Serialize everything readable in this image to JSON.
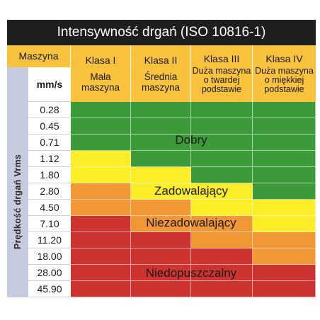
{
  "title": "Intensywność drgań (ISO 10816-1)",
  "header": {
    "machine_label": "Maszyna",
    "unit_label": "mm/s",
    "classes": [
      {
        "name": "Klasa I",
        "desc": "Mała maszyna"
      },
      {
        "name": "Klasa II",
        "desc": "Średnia maszyna"
      },
      {
        "name": "Klasa III",
        "desc_line1": "Duża maszyna",
        "desc_line2": "o twardej podstawie"
      },
      {
        "name": "Klasa IV",
        "desc_line1": "Duża maszyna",
        "desc_line2": "o miękkiej podstawie"
      }
    ]
  },
  "side_label": "Prędkość drgań Vrms",
  "rows": [
    "0.28",
    "0.45",
    "0.71",
    "1.12",
    "1.80",
    "2.80",
    "4.50",
    "7.10",
    "11.20",
    "18.00",
    "28.00",
    "45.90"
  ],
  "zones": {
    "good": "Dobry",
    "satisfactory": "Zadowalający",
    "unsatisfactory": "Niezadowalający",
    "unacceptable": "Niedopuszczalny"
  },
  "zone_matrix": [
    [
      "green",
      "green",
      "green",
      "green"
    ],
    [
      "green",
      "green",
      "green",
      "green"
    ],
    [
      "green",
      "green",
      "green",
      "green"
    ],
    [
      "yellow",
      "green",
      "green",
      "green"
    ],
    [
      "yellow",
      "yellow",
      "green",
      "green"
    ],
    [
      "orange",
      "yellow",
      "yellow",
      "green"
    ],
    [
      "orange",
      "orange",
      "yellow",
      "yellow"
    ],
    [
      "red",
      "orange",
      "orange",
      "yellow"
    ],
    [
      "red",
      "red",
      "orange",
      "orange"
    ],
    [
      "red",
      "red",
      "red",
      "orange"
    ],
    [
      "red",
      "red",
      "red",
      "red"
    ],
    [
      "red",
      "red",
      "red",
      "red"
    ]
  ],
  "colors": {
    "green": "#3c9a3a",
    "yellow": "#fbed28",
    "orange": "#f29735",
    "red": "#cc3331",
    "header": "#f8c23c",
    "title_bg": "#1e1e1e",
    "side": "#c6cbe0"
  }
}
